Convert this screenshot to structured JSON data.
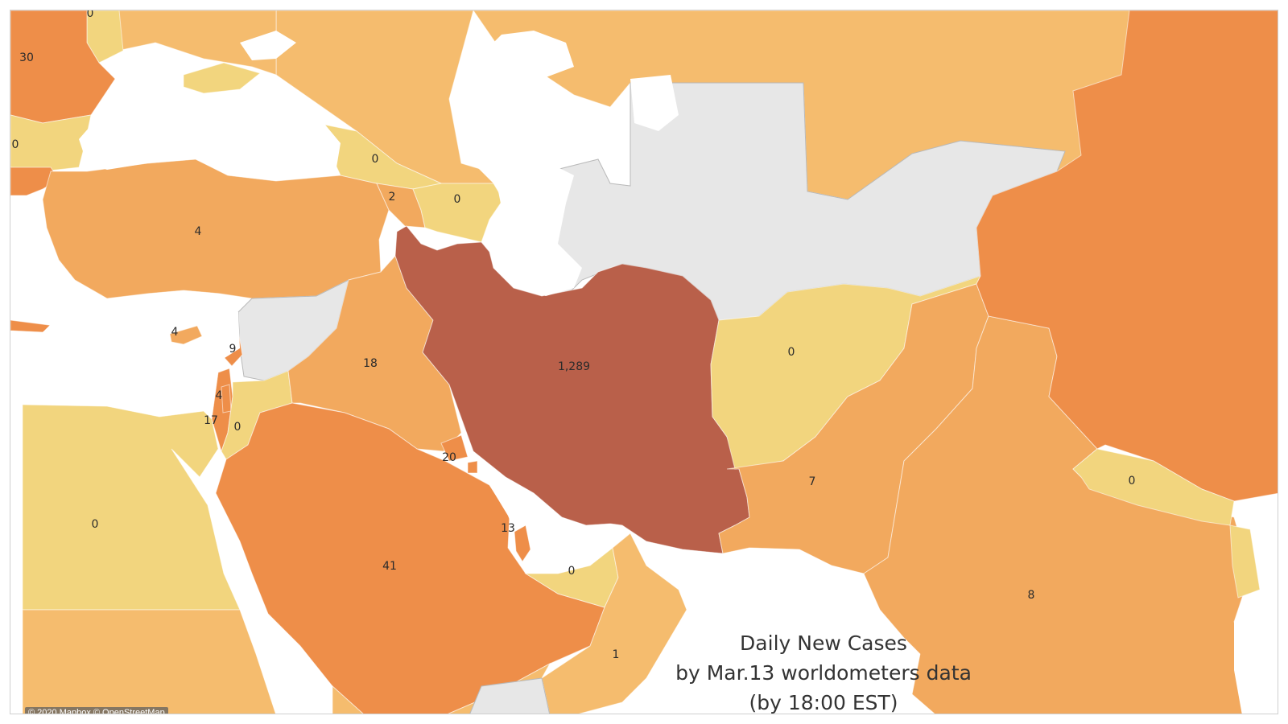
{
  "title": {
    "line1": "Daily New Cases",
    "line2": "by Mar.13 worldometers data",
    "line3": "(by 18:00 EST)"
  },
  "attribution": "© 2020 Mapbox © OpenStreetMap",
  "colors": {
    "highest": "#b9604a",
    "high": "#ee8e49",
    "mid": "#f2a95e",
    "low": "#f5bc6e",
    "zero": "#f2d57e",
    "nodata": "#e7e7e7",
    "water": "#ffffff"
  },
  "regions": [
    {
      "name": "Iran",
      "value": "1,289",
      "level": "highest"
    },
    {
      "name": "Saudi Arabia",
      "value": "41",
      "level": "high"
    },
    {
      "name": "Romania",
      "value": "30",
      "level": "high"
    },
    {
      "name": "Bahrain",
      "value": "20",
      "level": "high"
    },
    {
      "name": "Iraq",
      "value": "18",
      "level": "mid"
    },
    {
      "name": "Israel",
      "value": "17",
      "level": "high"
    },
    {
      "name": "Qatar",
      "value": "13",
      "level": "high"
    },
    {
      "name": "Lebanon",
      "value": "9",
      "level": "high"
    },
    {
      "name": "India",
      "value": "8",
      "level": "mid"
    },
    {
      "name": "Pakistan",
      "value": "7",
      "level": "mid"
    },
    {
      "name": "Turkey",
      "value": "4",
      "level": "mid"
    },
    {
      "name": "Cyprus",
      "value": "4",
      "level": "mid"
    },
    {
      "name": "Palestine",
      "value": "4",
      "level": "high"
    },
    {
      "name": "Armenia",
      "value": "2",
      "level": "mid"
    },
    {
      "name": "Oman",
      "value": "1",
      "level": "low"
    },
    {
      "name": "Egypt",
      "value": "0",
      "level": "zero"
    },
    {
      "name": "Jordan",
      "value": "0",
      "level": "zero"
    },
    {
      "name": "United Arab Emirates",
      "value": "0",
      "level": "zero"
    },
    {
      "name": "Afghanistan",
      "value": "0",
      "level": "zero"
    },
    {
      "name": "Georgia",
      "value": "0",
      "level": "zero"
    },
    {
      "name": "Azerbaijan",
      "value": "0",
      "level": "zero"
    },
    {
      "name": "Nepal",
      "value": "0",
      "level": "zero"
    },
    {
      "name": "Moldova",
      "value": "0",
      "level": "zero"
    },
    {
      "name": "Bulgaria",
      "value": "0",
      "level": "zero"
    }
  ]
}
